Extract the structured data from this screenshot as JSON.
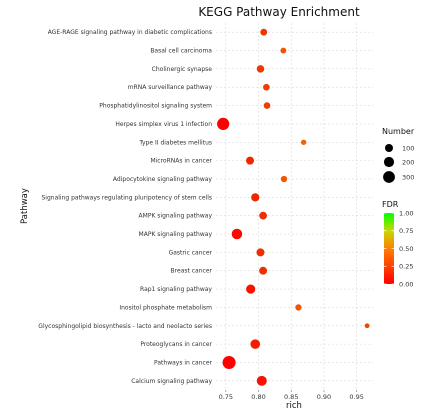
{
  "chart_data": {
    "type": "scatter",
    "title": "KEGG Pathway Enrichment",
    "xlabel": "rich",
    "ylabel": "Pathway",
    "xlim": [
      0.735,
      0.975
    ],
    "xticks": [
      0.75,
      0.8,
      0.85,
      0.9,
      0.95
    ],
    "xtick_labels": [
      "0.75",
      "0.80",
      "0.85",
      "0.90",
      "0.95"
    ],
    "grid": true,
    "points": [
      {
        "pathway": "AGE-RAGE signaling pathway in diabetic complications",
        "rich": 0.808,
        "number": 60,
        "fdr": 0.06
      },
      {
        "pathway": "Basal cell carcinoma",
        "rich": 0.838,
        "number": 35,
        "fdr": 0.1
      },
      {
        "pathway": "Cholinergic synapse",
        "rich": 0.803,
        "number": 80,
        "fdr": 0.06
      },
      {
        "pathway": "mRNA surveillance pathway",
        "rich": 0.812,
        "number": 55,
        "fdr": 0.07
      },
      {
        "pathway": "Phosphatidylinositol signaling system",
        "rich": 0.813,
        "number": 55,
        "fdr": 0.07
      },
      {
        "pathway": "Herpes simplex virus 1 infection",
        "rich": 0.746,
        "number": 330,
        "fdr": 0.0
      },
      {
        "pathway": "Type II diabetes mellitus",
        "rich": 0.869,
        "number": 25,
        "fdr": 0.12
      },
      {
        "pathway": "MicroRNAs in cancer",
        "rich": 0.787,
        "number": 100,
        "fdr": 0.04
      },
      {
        "pathway": "Adipocytokine signaling pathway",
        "rich": 0.839,
        "number": 45,
        "fdr": 0.1
      },
      {
        "pathway": "Signaling pathways regulating pluripotency of stem cells",
        "rich": 0.795,
        "number": 110,
        "fdr": 0.04
      },
      {
        "pathway": "AMPK signaling pathway",
        "rich": 0.807,
        "number": 90,
        "fdr": 0.05
      },
      {
        "pathway": "MAPK signaling pathway",
        "rich": 0.767,
        "number": 220,
        "fdr": 0.01
      },
      {
        "pathway": "Gastric cancer",
        "rich": 0.803,
        "number": 100,
        "fdr": 0.05
      },
      {
        "pathway": "Breast cancer",
        "rich": 0.807,
        "number": 95,
        "fdr": 0.05
      },
      {
        "pathway": "Rap1 signaling pathway",
        "rich": 0.788,
        "number": 150,
        "fdr": 0.02
      },
      {
        "pathway": "Inositol phosphate metabolism",
        "rich": 0.861,
        "number": 45,
        "fdr": 0.1
      },
      {
        "pathway": "Glycosphingolipid biosynthesis - lacto and neolacto series",
        "rich": 0.966,
        "number": 15,
        "fdr": 0.08
      },
      {
        "pathway": "Proteoglycans in cancer",
        "rich": 0.795,
        "number": 170,
        "fdr": 0.03
      },
      {
        "pathway": "Pathways in cancer",
        "rich": 0.755,
        "number": 390,
        "fdr": 0.0
      },
      {
        "pathway": "Calcium signaling pathway",
        "rich": 0.805,
        "number": 190,
        "fdr": 0.02
      }
    ],
    "size_legend": {
      "title": "Number",
      "values": [
        100,
        200,
        300
      ],
      "labels": [
        "100",
        "200",
        "300"
      ]
    },
    "color_legend": {
      "title": "FDR",
      "range": [
        0.0,
        1.0
      ],
      "ticks": [
        0.0,
        0.25,
        0.5,
        0.75,
        1.0
      ],
      "tick_labels": [
        "0.00",
        "0.25",
        "0.50",
        "0.75",
        "1.00"
      ],
      "low_color": "#ff0000",
      "high_color": "#00ff00"
    },
    "legend_position": "right"
  }
}
